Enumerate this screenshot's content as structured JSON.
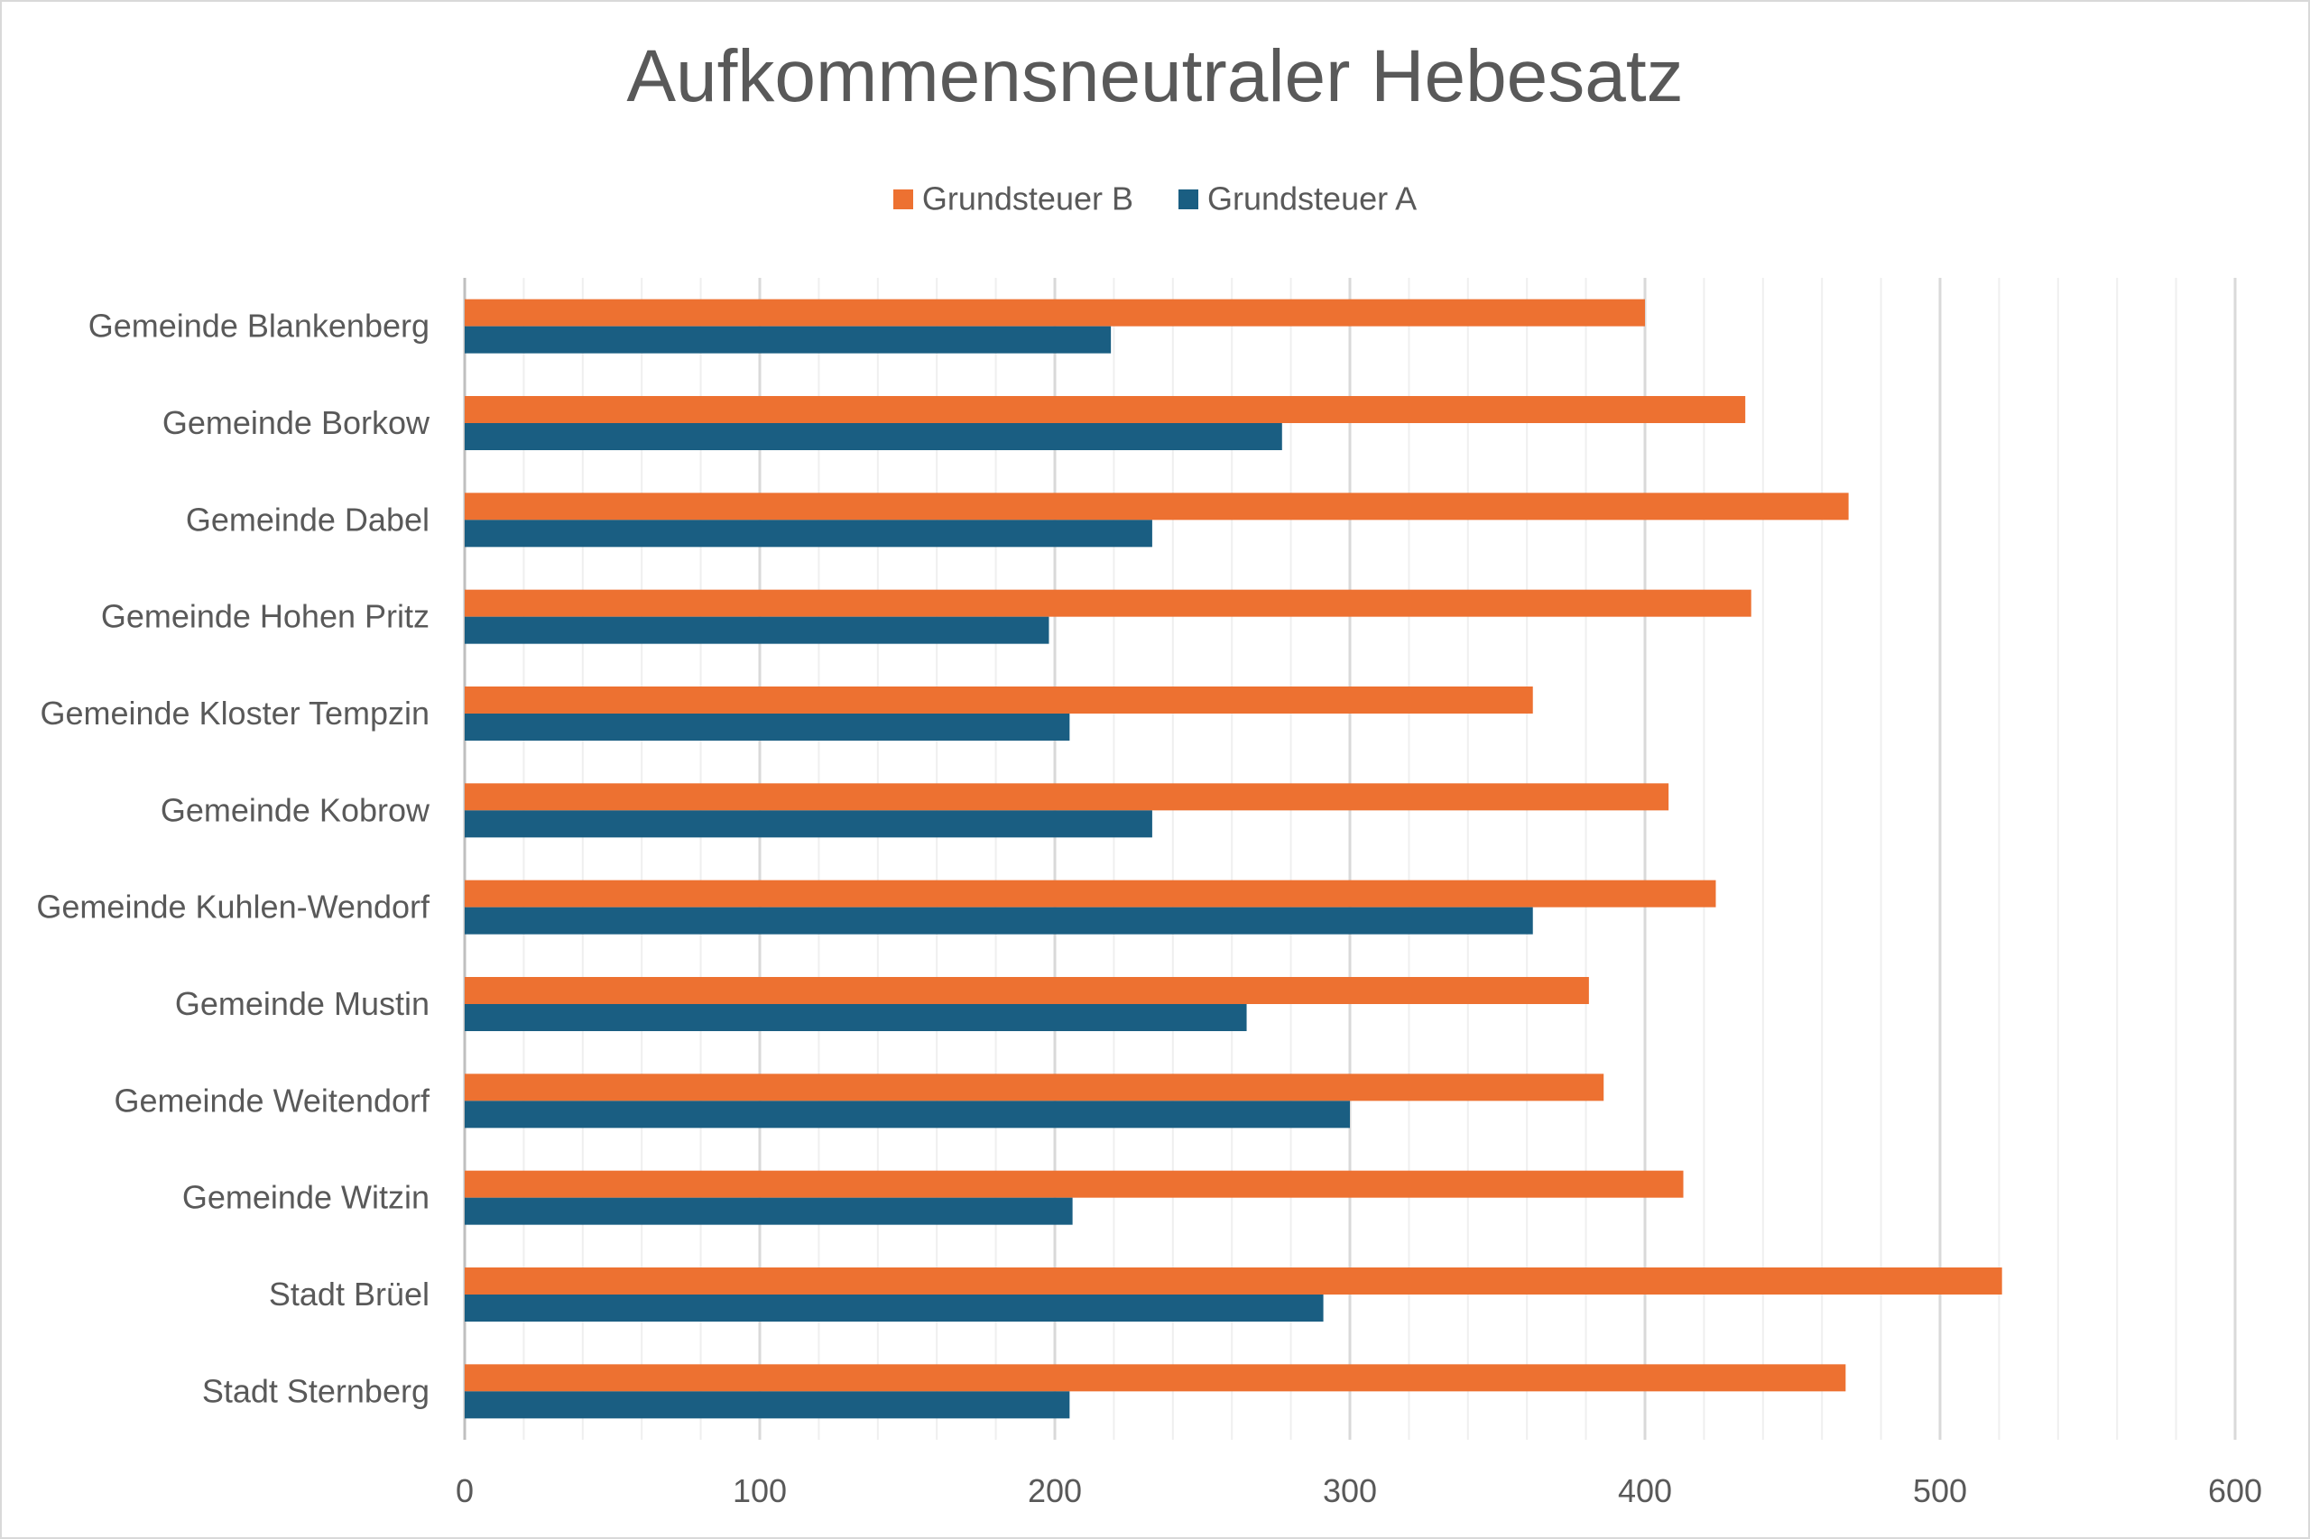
{
  "chart_data": {
    "type": "bar",
    "orientation": "horizontal",
    "title": "Aufkommensneutraler Hebesatz",
    "xlabel": "",
    "ylabel": "",
    "xlim": [
      0,
      600
    ],
    "x_ticks": [
      "0",
      "100",
      "200",
      "300",
      "400",
      "500",
      "600"
    ],
    "grid": "on",
    "legend_position": "top",
    "categories": [
      "Gemeinde Blankenberg",
      "Gemeinde Borkow",
      "Gemeinde Dabel",
      "Gemeinde Hohen Pritz",
      "Gemeinde Kloster Tempzin",
      "Gemeinde Kobrow",
      "Gemeinde Kuhlen-Wendorf",
      "Gemeinde Mustin",
      "Gemeinde Weitendorf",
      "Gemeinde Witzin",
      "Stadt Brüel",
      "Stadt Sternberg"
    ],
    "series": [
      {
        "name": "Grundsteuer B",
        "color": "#ED7131",
        "values": [
          400,
          434,
          469,
          436,
          362,
          408,
          424,
          381,
          386,
          413,
          521,
          468
        ]
      },
      {
        "name": "Grundsteuer A",
        "color": "#1A5E82",
        "values": [
          219,
          277,
          233,
          198,
          205,
          233,
          362,
          265,
          300,
          206,
          291,
          205
        ]
      }
    ]
  }
}
